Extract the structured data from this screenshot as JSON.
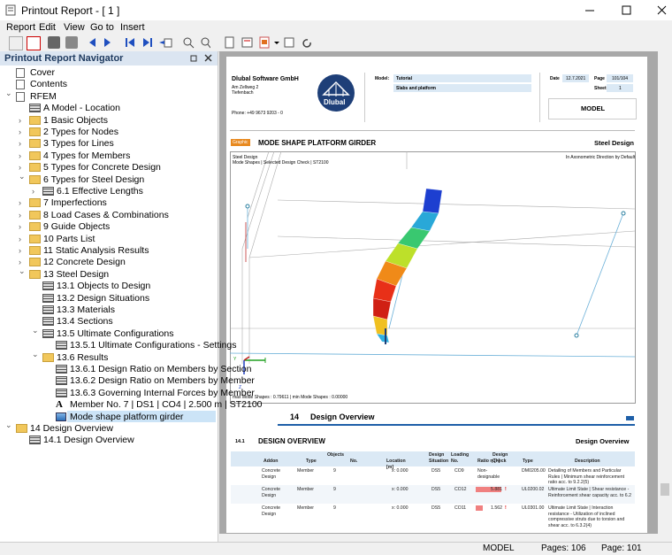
{
  "window": {
    "title": "Printout Report - [ 1 ]"
  },
  "menu": [
    "Report",
    "Edit",
    "View",
    "Go to",
    "Insert"
  ],
  "navigator": {
    "title": "Printout Report Navigator",
    "tree": [
      {
        "label": "Cover",
        "icon": "doc"
      },
      {
        "label": "Contents",
        "icon": "doc"
      },
      {
        "label": "RFEM",
        "icon": "doc",
        "expanded": true,
        "children": [
          {
            "label": "A Model - Location",
            "icon": "page"
          },
          {
            "label": "1 Basic Objects",
            "icon": "folder",
            "expanded": false
          },
          {
            "label": "2 Types for Nodes",
            "icon": "folder",
            "expanded": false
          },
          {
            "label": "3 Types for Lines",
            "icon": "folder",
            "expanded": false
          },
          {
            "label": "4 Types for Members",
            "icon": "folder",
            "expanded": false
          },
          {
            "label": "5 Types for Concrete Design",
            "icon": "folder",
            "expanded": false
          },
          {
            "label": "6 Types for Steel Design",
            "icon": "folder",
            "expanded": true,
            "children": [
              {
                "label": "6.1 Effective Lengths",
                "icon": "page",
                "expanded": false
              }
            ]
          },
          {
            "label": "7 Imperfections",
            "icon": "folder",
            "expanded": false
          },
          {
            "label": "8 Load Cases & Combinations",
            "icon": "folder",
            "expanded": false
          },
          {
            "label": "9 Guide Objects",
            "icon": "folder",
            "expanded": false
          },
          {
            "label": "10 Parts List",
            "icon": "folder",
            "expanded": false
          },
          {
            "label": "11 Static Analysis Results",
            "icon": "folder",
            "expanded": false
          },
          {
            "label": "12 Concrete Design",
            "icon": "folder",
            "expanded": false
          },
          {
            "label": "13 Steel Design",
            "icon": "folder",
            "expanded": true,
            "children": [
              {
                "label": "13.1 Objects to Design",
                "icon": "page"
              },
              {
                "label": "13.2 Design Situations",
                "icon": "page"
              },
              {
                "label": "13.3 Materials",
                "icon": "page"
              },
              {
                "label": "13.4 Sections",
                "icon": "page"
              },
              {
                "label": "13.5 Ultimate Configurations",
                "icon": "page",
                "expanded": true,
                "children": [
                  {
                    "label": "13.5.1 Ultimate Configurations - Settings",
                    "icon": "page"
                  }
                ]
              },
              {
                "label": "13.6 Results",
                "icon": "folder",
                "expanded": true,
                "children": [
                  {
                    "label": "13.6.1 Design Ratio on Members by Section",
                    "icon": "page"
                  },
                  {
                    "label": "13.6.2 Design Ratio on Members by Member",
                    "icon": "page"
                  },
                  {
                    "label": "13.6.3 Governing Internal Forces by Member",
                    "icon": "page"
                  },
                  {
                    "label": "Member No. 7 | DS1 | CO4 | 2.500 m | ST2100",
                    "icon": "text"
                  },
                  {
                    "label": "Mode shape platform girder",
                    "icon": "image",
                    "selected": true
                  }
                ]
              }
            ]
          }
        ]
      },
      {
        "label": "14 Design Overview",
        "icon": "folder",
        "expanded": true,
        "children": [
          {
            "label": "14.1 Design Overview",
            "icon": "page"
          }
        ]
      }
    ]
  },
  "page": {
    "company": "Dlubal Software GmbH",
    "street": "Am Zellweg 2",
    "city": "Tiefenbach",
    "phone": "Phone: +49 9673 9203 - 0",
    "logo": "Dlubal",
    "model_label": "Model:",
    "model": "Tutorial",
    "model_desc": "Slabs and platform",
    "date_label": "Date",
    "date": "12.7.2021",
    "page_label": "Page",
    "page_no": "101/104",
    "sheet_label": "Sheet",
    "sheet": "1",
    "section": "MODEL",
    "graphic_tag": "Graphic",
    "graphic_title": "MODE SHAPE PLATFORM GIRDER",
    "graphic_addon": "Steel Design",
    "graphic_line1": "Steel Design",
    "graphic_line2": "Mode Shapes | Selected Design Check | ST2100",
    "graphic_view": "In Axonometric Direction by Default",
    "graphic_axis_y": "Y",
    "graphic_axis_z": "Z",
    "graphic_footer": "max Mode Shapes : 0.79611 | min Mode Shapes : 0.00000",
    "chapter_no": "14",
    "chapter": "Design Overview",
    "sub_no": "14.1",
    "sub_title": "DESIGN OVERVIEW",
    "sub_addon": "Design Overview",
    "table": {
      "head": {
        "addon": "Addon",
        "objects": "Objects",
        "type": "Type",
        "no": "No.",
        "location": "Location [m]",
        "situation": "Design Situation",
        "loading": "Loading No.",
        "check": "Design Check",
        "ratio": "Ratio η [–]",
        "check_type": "Type",
        "description": "Description"
      },
      "rows": [
        {
          "addon": "Concrete Design",
          "type": "Member",
          "no": 9,
          "location": "x: 0.000",
          "situation": "DS5",
          "loading": "CO9",
          "ratio": "Non-designable",
          "check_type": "DM0205.00",
          "description": "Detailing of Members and Particular Rules | Minimum shear reinforcement ratio acc. to 9.2.2(5)"
        },
        {
          "addon": "Concrete Design",
          "type": "Member",
          "no": 9,
          "location": "x: 0.000",
          "situation": "DS5",
          "loading": "CO12",
          "ratio": 5.881,
          "check_type": "UL0200.02",
          "description": "Ultimate Limit State | Shear resistance - Reinforcement shear capacity acc. to 6.2"
        },
        {
          "addon": "Concrete Design",
          "type": "Member",
          "no": 9,
          "location": "x: 0.000",
          "situation": "DS5",
          "loading": "CO11",
          "ratio": 1.562,
          "check_type": "UL0301.00",
          "description": "Ultimate Limit State | Interaction resistance - Utilization of inclined compressive struts due to torsion and shear acc. to 6.3.2(4)"
        }
      ]
    }
  },
  "status": {
    "model": "MODEL",
    "pages": "Pages: 106",
    "page": "Page: 101"
  }
}
